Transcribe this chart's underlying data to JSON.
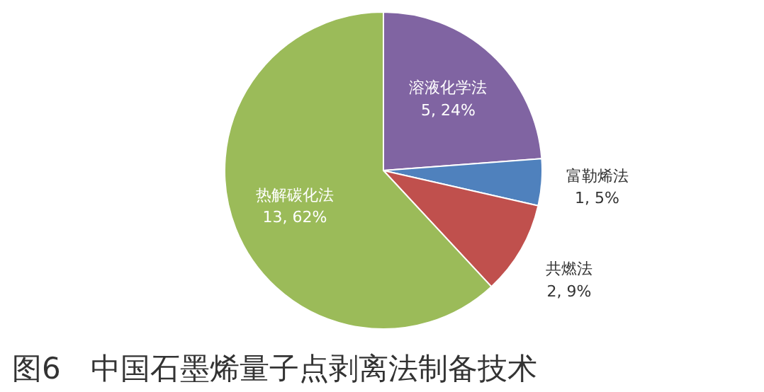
{
  "chart_data": {
    "type": "pie",
    "title": "图6　中国石墨烯量子点剥离法制备技术",
    "categories": [
      "溶液化学法",
      "富勒烯法",
      "共燃法",
      "热解碳化法"
    ],
    "values": [
      5,
      1,
      2,
      13
    ],
    "colors": [
      "#8064a2",
      "#4f81bd",
      "#c0504d",
      "#9bbb59"
    ],
    "value_labels": [
      "5, 24%",
      "1, 5%",
      "2, 9%",
      "13, 62%"
    ]
  }
}
